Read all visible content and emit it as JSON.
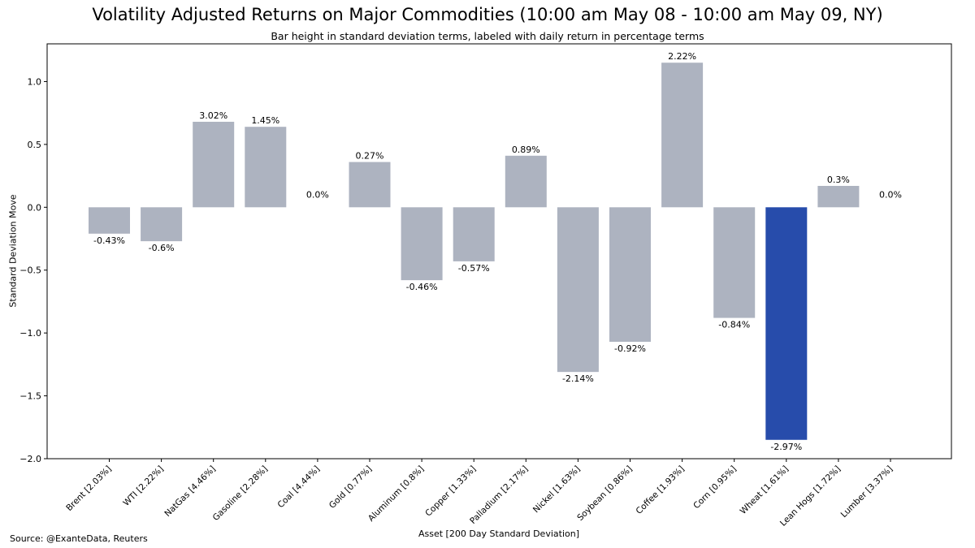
{
  "chart_data": {
    "type": "bar",
    "title": "Volatility Adjusted Returns on Major Commodities (10:00 am May 08 - 10:00 am May 09, NY)",
    "subtitle": "Bar height in standard deviation terms, labeled with daily return in percentage terms",
    "xlabel": "Asset [200 Day Standard Deviation]",
    "ylabel": "Standard Deviation Move",
    "ylim": [
      -2.0,
      1.3
    ],
    "yticks": [
      -2.0,
      -1.5,
      -1.0,
      -0.5,
      0.0,
      0.5,
      1.0
    ],
    "ytick_labels": [
      "−2.0",
      "−1.5",
      "−1.0",
      "−0.5",
      "0.0",
      "0.5",
      "1.0"
    ],
    "categories": [
      "Brent [2.03%]",
      "WTI [2.22%]",
      "NatGas [4.46%]",
      "Gasoline [2.28%]",
      "Coal [4.44%]",
      "Gold [0.77%]",
      "Aluminum [0.8%]",
      "Copper [1.33%]",
      "Palladium [2.17%]",
      "Nickel [1.63%]",
      "Soybean [0.86%]",
      "Coffee [1.93%]",
      "Corn [0.95%]",
      "Wheat [1.61%]",
      "Lean Hogs [1.72%]",
      "Lumber [3.37%]"
    ],
    "values": [
      -0.21,
      -0.27,
      0.68,
      0.64,
      0.0,
      0.36,
      -0.58,
      -0.43,
      0.41,
      -1.31,
      -1.07,
      1.15,
      -0.88,
      -1.85,
      0.17,
      0.0
    ],
    "data_labels": [
      "-0.43%",
      "-0.6%",
      "3.02%",
      "1.45%",
      "0.0%",
      "0.27%",
      "-0.46%",
      "-0.57%",
      "0.89%",
      "-2.14%",
      "-0.92%",
      "2.22%",
      "-0.84%",
      "-2.97%",
      "0.3%",
      "0.0%"
    ],
    "highlight_index": 13,
    "colors": {
      "bar": "#adb3c0",
      "highlight": "#274cab",
      "axis": "#000000"
    },
    "grid": false,
    "legend": false
  },
  "source": "Source: @ExanteData, Reuters"
}
